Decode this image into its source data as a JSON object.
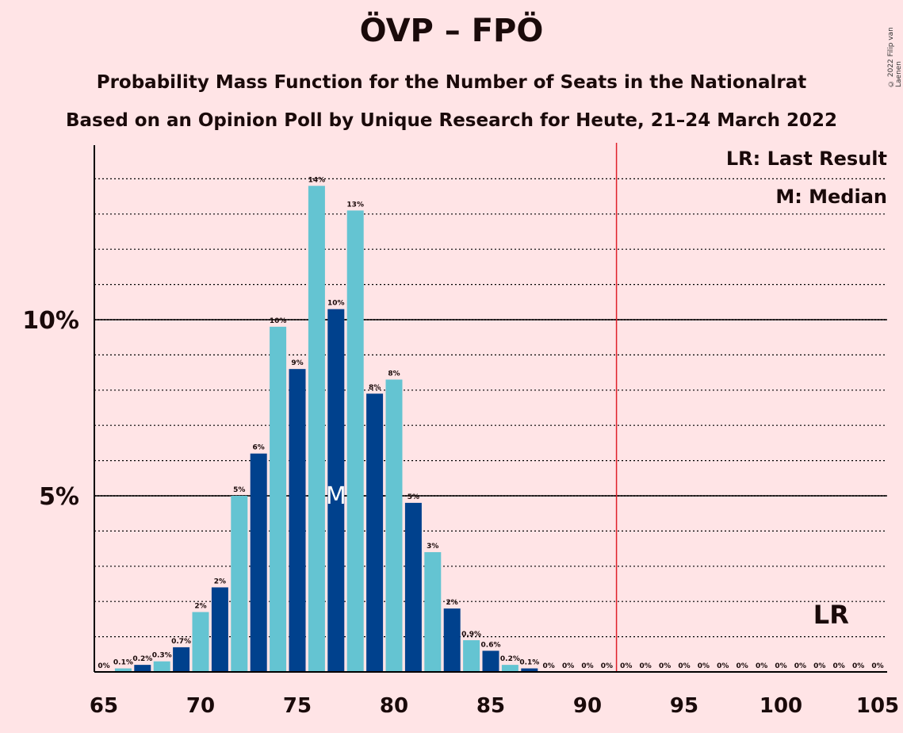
{
  "title": "ÖVP – FPÖ",
  "subtitle1": "Probability Mass Function for the Number of Seats in the Nationalrat",
  "subtitle2": "Based on an Opinion Poll by Unique Research for Heute, 21–24 March 2022",
  "copyright": "© 2022 Filip van Laenen",
  "legend": {
    "lr": "LR: Last Result",
    "median": "M: Median"
  },
  "colors": {
    "background": "#FFE4E6",
    "bar_dark": "#00418D",
    "bar_light": "#64C4D2",
    "threshold_line": "#E0202A",
    "text": "#1a0a0a"
  },
  "chart_data": {
    "type": "bar",
    "x": [
      65,
      66,
      67,
      68,
      69,
      70,
      71,
      72,
      73,
      74,
      75,
      76,
      77,
      78,
      79,
      80,
      81,
      82,
      83,
      84,
      85,
      86,
      87,
      88,
      89,
      90,
      91,
      92,
      93,
      94,
      95,
      96,
      97,
      98,
      99,
      100,
      101,
      102,
      103,
      104,
      105
    ],
    "values": [
      0,
      0.1,
      0.2,
      0.3,
      0.7,
      1.7,
      2.4,
      5.0,
      6.2,
      9.8,
      8.6,
      13.8,
      10.3,
      13.1,
      7.9,
      8.3,
      4.8,
      3.4,
      1.8,
      0.9,
      0.6,
      0.2,
      0.1,
      0,
      0,
      0,
      0,
      0,
      0,
      0,
      0,
      0,
      0,
      0,
      0,
      0,
      0,
      0,
      0,
      0,
      0
    ],
    "labels": [
      "0%",
      "0.1%",
      "0.2%",
      "0.3%",
      "0.7%",
      "2%",
      "2%",
      "5%",
      "6%",
      "10%",
      "9%",
      "14%",
      "10%",
      "13%",
      "8%",
      "8%",
      "5%",
      "3%",
      "2%",
      "0.9%",
      "0.6%",
      "0.2%",
      "0.1%",
      "0%",
      "0%",
      "0%",
      "0%",
      "0%",
      "0%",
      "0%",
      "0%",
      "0%",
      "0%",
      "0%",
      "0%",
      "0%",
      "0%",
      "0%",
      "0%",
      "0%",
      "0%"
    ],
    "xticks": [
      65,
      70,
      75,
      80,
      85,
      90,
      95,
      100,
      105
    ],
    "yticks": [
      {
        "value": 5,
        "label": "5%"
      },
      {
        "value": 10,
        "label": "10%"
      }
    ],
    "ylim": [
      0,
      15
    ],
    "minor_grid_step": 1,
    "majority_line": 91.5,
    "median": 77,
    "median_label": "M",
    "last_result": 102,
    "last_result_label": "LR"
  }
}
